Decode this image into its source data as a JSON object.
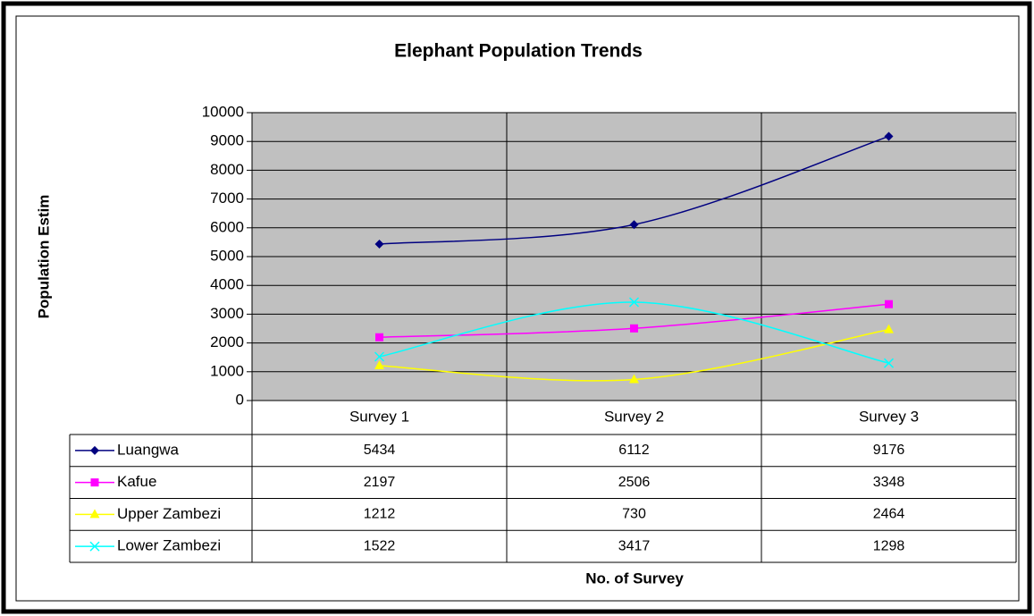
{
  "chart_data": {
    "type": "line",
    "title": "Elephant Population Trends",
    "y_label": "Population Estim",
    "x_label": "No. of Survey",
    "categories": [
      "Survey 1",
      "Survey 2",
      "Survey 3"
    ],
    "series": [
      {
        "name": "Luangwa",
        "color": "#000080",
        "marker": "diamond",
        "values": [
          5434,
          6112,
          9176
        ]
      },
      {
        "name": "Kafue",
        "color": "#ff00ff",
        "marker": "square",
        "values": [
          2197,
          2506,
          3348
        ]
      },
      {
        "name": "Upper Zambezi",
        "color": "#ffff00",
        "marker": "triangle",
        "values": [
          1212,
          730,
          2464
        ]
      },
      {
        "name": "Lower Zambezi",
        "color": "#00ffff",
        "marker": "x",
        "values": [
          1522,
          3417,
          1298
        ]
      }
    ],
    "ylim": [
      0,
      10000
    ],
    "yticks": [
      0,
      1000,
      2000,
      3000,
      4000,
      5000,
      6000,
      7000,
      8000,
      9000,
      10000
    ],
    "grid": true,
    "smooth": true,
    "plot_background": "#c0c0c0",
    "data_table": true
  }
}
